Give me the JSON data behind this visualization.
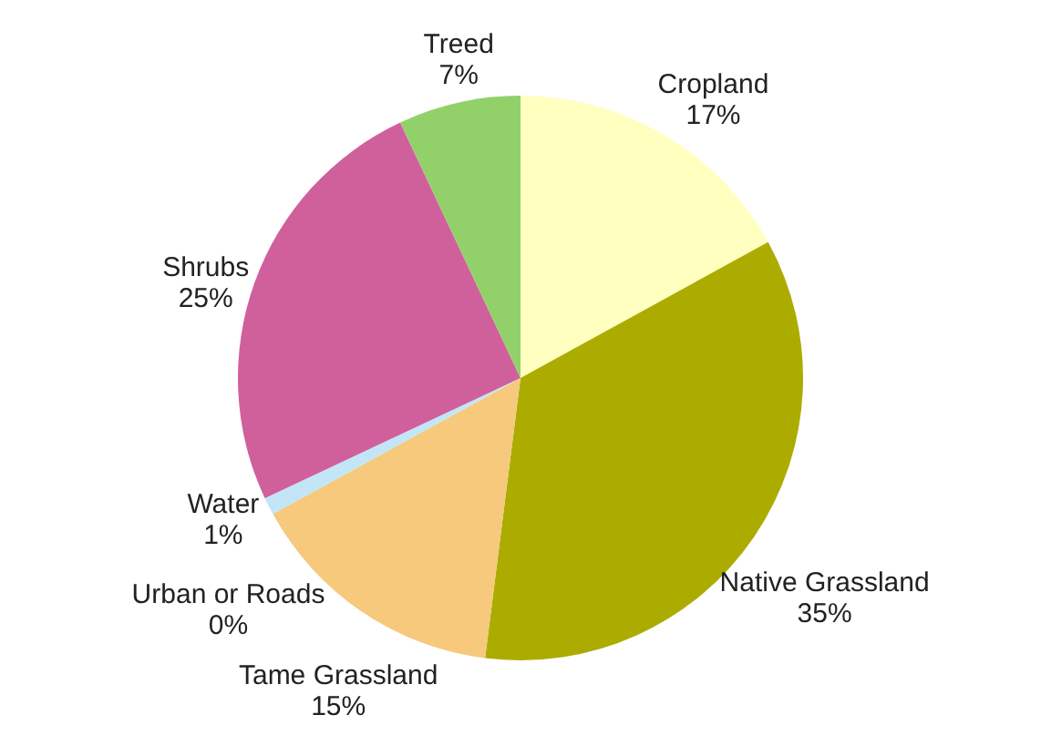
{
  "chart_data": {
    "type": "pie",
    "categories": [
      "Cropland",
      "Native Grassland",
      "Tame Grassland",
      "Urban or Roads",
      "Water",
      "Shrubs",
      "Treed"
    ],
    "values": [
      17,
      35,
      15,
      0,
      1,
      25,
      7
    ],
    "colors": [
      "#ffffc0",
      "#acac00",
      "#f6c97c",
      "#505050",
      "#c2e6f8",
      "#d0609c",
      "#92d16a"
    ],
    "value_labels": [
      "17%",
      "35%",
      "15%",
      "0%",
      "1%",
      "25%",
      "7%"
    ]
  }
}
